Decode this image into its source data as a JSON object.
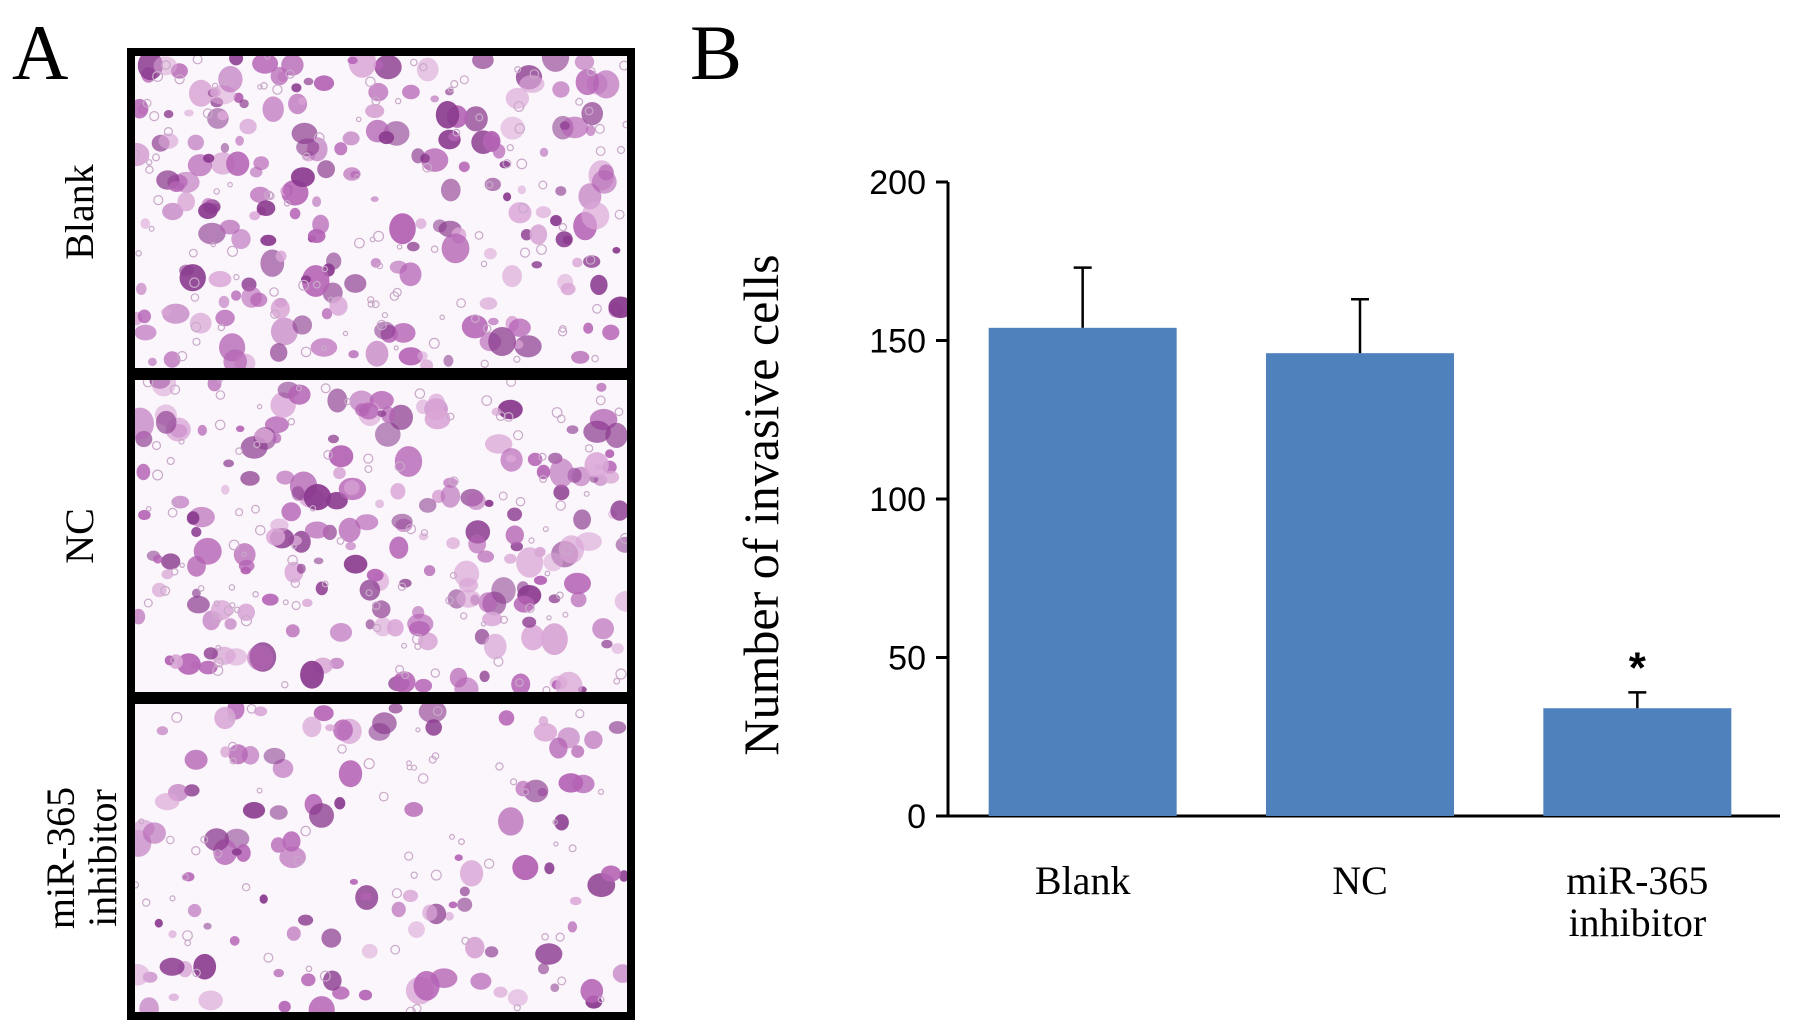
{
  "panel_a": {
    "letter": "A",
    "rows": [
      {
        "label_lines": [
          "Blank"
        ],
        "density": 0.85
      },
      {
        "label_lines": [
          "NC"
        ],
        "density": 0.8
      },
      {
        "label_lines": [
          "miR-365",
          "inhibitor"
        ],
        "density": 0.45
      }
    ]
  },
  "panel_b": {
    "letter": "B"
  },
  "colors": {
    "bar": "#4f81bd",
    "stain_dark": "#8a3a8e",
    "stain_mid": "#b463b4",
    "stain_light": "#d9a6d6",
    "frame": "#000000"
  },
  "chart_data": {
    "type": "bar",
    "categories": [
      [
        "Blank"
      ],
      [
        "NC"
      ],
      [
        "miR-365",
        "inhibitor"
      ]
    ],
    "values": [
      154,
      146,
      34
    ],
    "error": [
      19,
      17,
      5
    ],
    "annotations": [
      "",
      "",
      "*"
    ],
    "ylabel": "Number of invasive cells",
    "xlabel": "",
    "ylim": [
      0,
      200
    ],
    "yticks": [
      0,
      50,
      100,
      150,
      200
    ],
    "grid": false,
    "legend": "none"
  }
}
